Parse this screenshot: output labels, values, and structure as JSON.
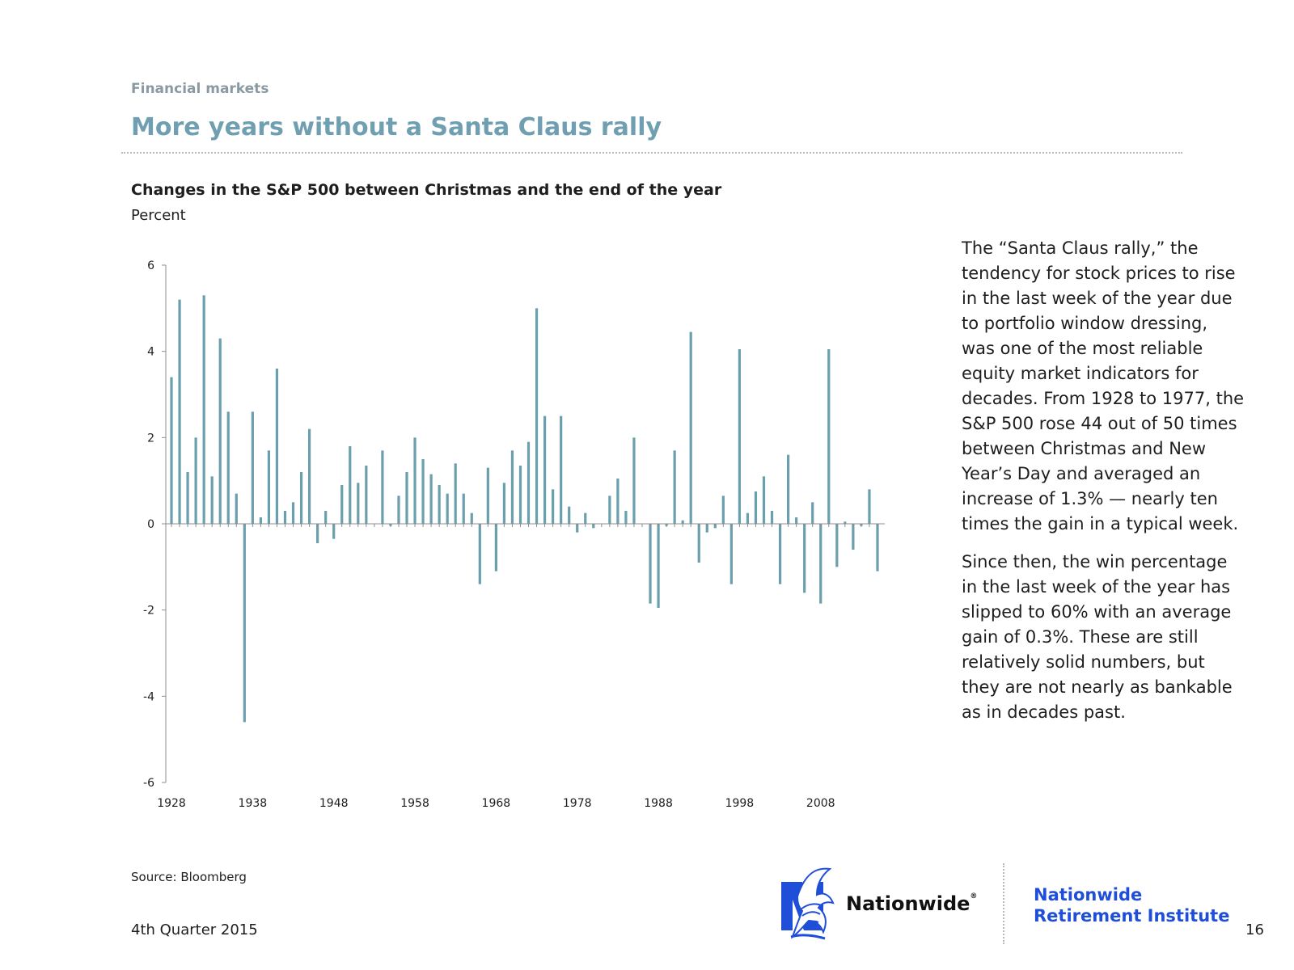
{
  "header": {
    "section": "Financial markets",
    "title": "More years without a Santa Claus rally"
  },
  "chart_heading": {
    "title": "Changes in the S&P 500 between Christmas and the end of the year",
    "unit": "Percent"
  },
  "chart_data": {
    "type": "bar",
    "title": "Changes in the S&P 500 between Christmas and the end of the year",
    "ylabel": "Percent",
    "xlabel": "",
    "ylim": [
      -6,
      6
    ],
    "yticks": [
      6,
      4,
      2,
      0,
      -2,
      -4,
      -6
    ],
    "xticks": [
      1928,
      1938,
      1948,
      1958,
      1968,
      1978,
      1988,
      1998,
      2008
    ],
    "bar_color": "#6a9fae",
    "grid": false,
    "x": [
      1928,
      1929,
      1930,
      1931,
      1932,
      1933,
      1934,
      1935,
      1936,
      1937,
      1938,
      1939,
      1940,
      1941,
      1942,
      1943,
      1944,
      1945,
      1946,
      1947,
      1948,
      1949,
      1950,
      1951,
      1952,
      1953,
      1954,
      1955,
      1956,
      1957,
      1958,
      1959,
      1960,
      1961,
      1962,
      1963,
      1964,
      1965,
      1966,
      1967,
      1968,
      1969,
      1970,
      1971,
      1972,
      1973,
      1974,
      1975,
      1976,
      1977,
      1978,
      1979,
      1980,
      1981,
      1982,
      1983,
      1984,
      1985,
      1986,
      1987,
      1988,
      1989,
      1990,
      1991,
      1992,
      1993,
      1994,
      1995,
      1996,
      1997,
      1998,
      1999,
      2000,
      2001,
      2002,
      2003,
      2004,
      2005,
      2006,
      2007,
      2008,
      2009,
      2010,
      2011,
      2012,
      2013,
      2014,
      2015
    ],
    "values": [
      3.4,
      5.2,
      1.2,
      2.0,
      5.3,
      1.1,
      4.3,
      2.6,
      0.7,
      -4.6,
      2.6,
      0.15,
      1.7,
      3.6,
      0.3,
      0.5,
      1.2,
      2.2,
      -0.45,
      0.3,
      -0.35,
      0.9,
      1.8,
      0.95,
      1.35,
      0.0,
      1.7,
      -0.05,
      0.65,
      1.2,
      2.0,
      1.5,
      1.15,
      0.9,
      0.7,
      1.4,
      0.7,
      0.25,
      -1.4,
      1.3,
      -1.1,
      0.95,
      1.7,
      1.35,
      1.9,
      5.0,
      2.5,
      0.8,
      2.5,
      0.4,
      -0.2,
      0.25,
      -0.1,
      0.0,
      0.65,
      1.05,
      0.3,
      2.0,
      0.0,
      -1.85,
      -1.95,
      -0.05,
      1.7,
      0.08,
      4.45,
      -0.9,
      -0.2,
      -0.1,
      0.65,
      -1.4,
      4.05,
      0.25,
      0.75,
      1.1,
      0.3,
      -1.4,
      1.6,
      0.15,
      -1.6,
      0.5,
      -1.85,
      4.05,
      -1.0,
      0.05,
      -0.6,
      -0.05,
      0.8,
      -1.1
    ]
  },
  "commentary": {
    "paragraph_1": "The “Santa Claus rally,” the tendency for stock prices to rise in the last week of the year due to portfolio window dressing, was one of the most reliable equity market indicators for decades. From 1928 to 1977, the S&P 500 rose 44 out of 50 times between Christmas and New Year’s Day and averaged an increase of 1.3% — nearly ten times the gain in a typical week.",
    "paragraph_2": "Since then, the win percentage in the last week of the year has slipped to 60% with an average gain of 0.3%. These are still relatively solid numbers, but they are not nearly as bankable as in decades past."
  },
  "footer": {
    "source": "Source: Bloomberg",
    "date": "4th Quarter 2015",
    "brand": "Nationwide",
    "brand_mark": "®",
    "institute_line_1": "Nationwide",
    "institute_line_2": "Retirement Institute",
    "page_number": "16",
    "brand_color": "#1f4ed8"
  }
}
